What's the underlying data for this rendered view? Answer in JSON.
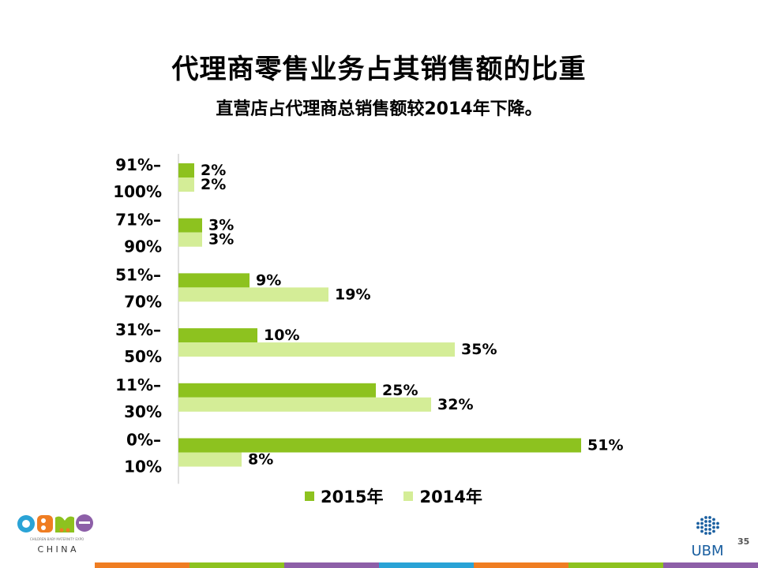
{
  "slide": {
    "title": "代理商零售业务占其销售额的比重",
    "subtitle": "直营店占代理商总销售额较2014年下降。",
    "page_number": "35"
  },
  "chart_data": {
    "type": "bar",
    "orientation": "horizontal",
    "categories": [
      [
        "91%–",
        "100%"
      ],
      [
        "71%–",
        "90%"
      ],
      [
        "51%–",
        "70%"
      ],
      [
        "31%–",
        "50%"
      ],
      [
        "11%–",
        "30%"
      ],
      [
        "0%–",
        "10%"
      ]
    ],
    "series": [
      {
        "name": "2015年",
        "values": [
          2,
          3,
          9,
          10,
          25,
          51
        ],
        "labels": [
          "2%",
          "3%",
          "9%",
          "10%",
          "25%",
          "51%"
        ],
        "color": "#8dc21f"
      },
      {
        "name": "2014年",
        "values": [
          2,
          3,
          19,
          35,
          32,
          8
        ],
        "labels": [
          "2%",
          "3%",
          "19%",
          "35%",
          "32%",
          "8%"
        ],
        "color": "#d4ed97"
      }
    ],
    "xlim": [
      0,
      51
    ],
    "grid": false,
    "legend_position": "bottom"
  },
  "logos": {
    "left": {
      "text": "CBME",
      "tagline": "CHILDREN·BABY·MATERNITY EXPO",
      "sub": "C H I N A"
    },
    "right": {
      "text": "UBM"
    }
  },
  "footer_colors": [
    "#ef7d22",
    "#8dc21f",
    "#8d5fa8",
    "#2aa3d6",
    "#ef7d22",
    "#8dc21f",
    "#8d5fa8"
  ]
}
